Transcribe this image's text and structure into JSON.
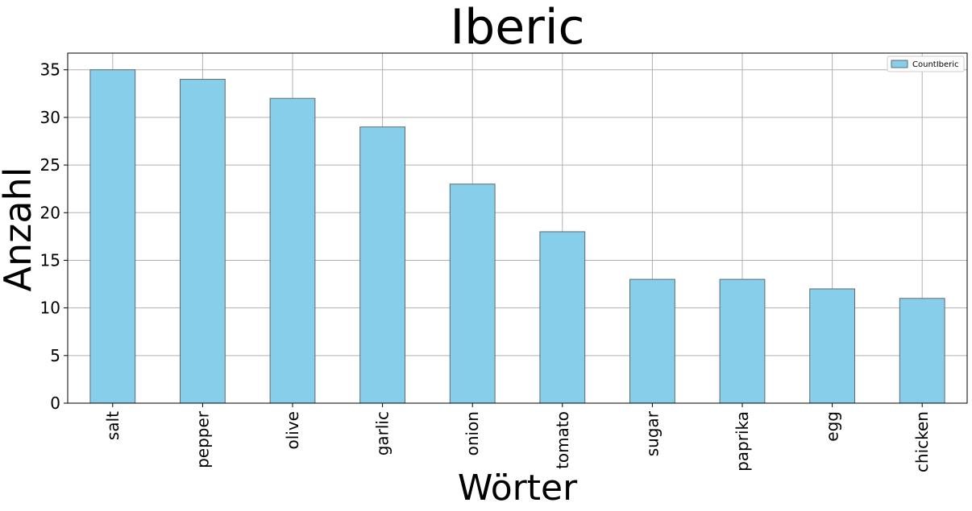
{
  "chart_data": {
    "type": "bar",
    "title": "Iberic",
    "xlabel": "Wörter",
    "ylabel": "Anzahl",
    "categories": [
      "salt",
      "pepper",
      "olive",
      "garlic",
      "onion",
      "tomato",
      "sugar",
      "paprika",
      "egg",
      "chicken"
    ],
    "series": [
      {
        "name": "CountIberic",
        "values": [
          35,
          34,
          32,
          29,
          23,
          18,
          13,
          13,
          12,
          11
        ]
      }
    ],
    "ylim": [
      0,
      36.75
    ],
    "yticks": [
      0,
      5,
      10,
      15,
      20,
      25,
      30,
      35
    ],
    "grid": true,
    "legend_position": "top-right",
    "colors": {
      "bar_fill": "#87ceeb",
      "bar_edge": "#5f6b73",
      "grid": "#b0b0b0",
      "axes": "#000000"
    }
  }
}
